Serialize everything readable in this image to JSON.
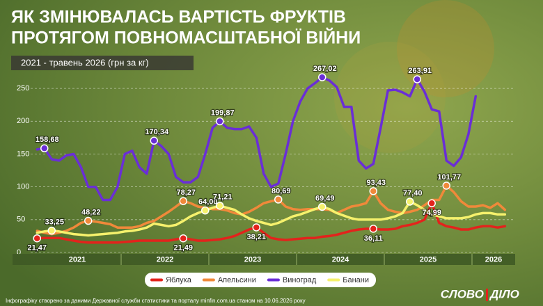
{
  "chart_data": {
    "type": "line",
    "title": [
      "ЯК ЗМІНЮВАЛАСЬ ВАРТІСТЬ ФРУКТІВ",
      "ПРОТЯГОМ ПОВНОМАСШТАБНОЇ ВІЙНИ"
    ],
    "subtitle": "2021 - травень 2026 (грн за кг)",
    "years": [
      "2021",
      "2022",
      "2023",
      "2024",
      "2025",
      "2026"
    ],
    "ylim": [
      0,
      265
    ],
    "yticks": [
      0,
      50,
      100,
      150,
      200,
      250
    ],
    "grid": true,
    "series": [
      {
        "name": "Яблука",
        "color": "#e3231c",
        "values": [
          21.47,
          22,
          22,
          22,
          20,
          18,
          16,
          15,
          15,
          15,
          15,
          15,
          16,
          17,
          18,
          18,
          18,
          18,
          18,
          20,
          21.49,
          20,
          18,
          18,
          19,
          20,
          22,
          25,
          30,
          35,
          38.21,
          30,
          22,
          20,
          19,
          20,
          21,
          22,
          22,
          24,
          25,
          27,
          30,
          33,
          35,
          36,
          36.11,
          35,
          35,
          36,
          40,
          42,
          45,
          50,
          74.99,
          45,
          40,
          38,
          35,
          35,
          38,
          40,
          40,
          38,
          40
        ],
        "value_labels": [
          "21,47",
          null,
          null,
          null,
          null,
          null,
          null,
          null,
          null,
          null,
          null,
          null,
          null,
          null,
          null,
          null,
          null,
          null,
          null,
          null,
          "21,49",
          null,
          null,
          null,
          null,
          null,
          null,
          null,
          null,
          null,
          "38,21",
          null,
          null,
          null,
          null,
          null,
          null,
          null,
          null,
          null,
          null,
          null,
          null,
          null,
          null,
          null,
          "36,11",
          null,
          null,
          null,
          null,
          null,
          null,
          null,
          "74,99",
          null,
          null,
          null,
          null,
          null,
          null,
          null,
          null,
          null,
          null
        ]
      },
      {
        "name": "Апельсини",
        "color": "#f0893a",
        "values": [
          33,
          30,
          28,
          30,
          33,
          38,
          45,
          48.22,
          47,
          45,
          43,
          38,
          38,
          38,
          40,
          45,
          48,
          55,
          62,
          70,
          78.27,
          75,
          70,
          68,
          66,
          66,
          64,
          60,
          58,
          62,
          68,
          75,
          78,
          80.69,
          70,
          66,
          65,
          66,
          66,
          66,
          65,
          60,
          65,
          70,
          72,
          75,
          93.43,
          75,
          65,
          62,
          60,
          62,
          65,
          72,
          80,
          80,
          101.77,
          92,
          78,
          70,
          70,
          72,
          68,
          75,
          65
        ],
        "value_labels": [
          null,
          null,
          null,
          null,
          null,
          null,
          null,
          "48,22",
          null,
          null,
          null,
          null,
          null,
          null,
          null,
          null,
          null,
          null,
          null,
          null,
          "78,27",
          null,
          null,
          null,
          null,
          null,
          null,
          null,
          null,
          null,
          null,
          null,
          null,
          "80,69",
          null,
          null,
          null,
          null,
          null,
          null,
          null,
          null,
          null,
          null,
          null,
          null,
          "93,43",
          null,
          null,
          null,
          null,
          null,
          null,
          null,
          null,
          null,
          "101,77",
          null,
          null,
          null,
          null,
          null,
          null,
          null,
          null
        ]
      },
      {
        "name": "Виноград",
        "color": "#6a2ed6",
        "values": [
          157,
          158.68,
          142,
          140,
          148,
          150,
          130,
          100,
          100,
          80,
          80,
          100,
          150,
          155,
          130,
          120,
          170.34,
          162,
          150,
          115,
          107,
          107,
          115,
          150,
          190,
          199.87,
          190,
          188,
          188,
          192,
          175,
          120,
          100,
          105,
          150,
          200,
          230,
          250,
          258,
          267.02,
          262,
          252,
          222,
          222,
          140,
          128,
          135,
          190,
          247,
          248,
          244,
          238,
          263.91,
          245,
          218,
          215,
          140,
          132,
          145,
          180,
          238,
          null,
          null,
          null,
          null
        ],
        "value_labels": [
          null,
          "158,68",
          null,
          null,
          null,
          null,
          null,
          null,
          null,
          null,
          null,
          null,
          null,
          null,
          null,
          null,
          "170,34",
          null,
          null,
          null,
          null,
          null,
          null,
          null,
          null,
          "199,87",
          null,
          null,
          null,
          null,
          null,
          null,
          null,
          null,
          null,
          null,
          null,
          null,
          null,
          "267,02",
          null,
          null,
          null,
          null,
          null,
          null,
          null,
          null,
          null,
          null,
          null,
          null,
          "263,91",
          null,
          null,
          null,
          null,
          null,
          null,
          null,
          null,
          null,
          null,
          null,
          null
        ]
      },
      {
        "name": "Банани",
        "color": "#f6f16c",
        "values": [
          30,
          32,
          33.25,
          32,
          30,
          28,
          27,
          26,
          27,
          28,
          29,
          30,
          32,
          33,
          35,
          38,
          44,
          42,
          40,
          42,
          48,
          55,
          60,
          64.0,
          68,
          71.21,
          68,
          65,
          58,
          52,
          48,
          45,
          42,
          45,
          50,
          55,
          58,
          62,
          66,
          69.49,
          66,
          60,
          56,
          52,
          50,
          50,
          50,
          50,
          52,
          55,
          60,
          77.4,
          72,
          65,
          58,
          55,
          52,
          52,
          52,
          54,
          58,
          60,
          60,
          58,
          58
        ],
        "value_labels": [
          null,
          null,
          "33,25",
          null,
          null,
          null,
          null,
          null,
          null,
          null,
          null,
          null,
          null,
          null,
          null,
          null,
          null,
          null,
          null,
          null,
          null,
          null,
          null,
          "64,00",
          null,
          "71,21",
          null,
          null,
          null,
          null,
          null,
          null,
          null,
          null,
          null,
          null,
          null,
          null,
          null,
          "69,49",
          null,
          null,
          null,
          null,
          null,
          null,
          null,
          null,
          null,
          null,
          null,
          "77,40",
          null,
          null,
          null,
          null,
          null,
          null,
          null,
          null,
          null,
          null,
          null,
          null,
          null
        ]
      }
    ],
    "footnote": "Інфографіку створено за даними Державної служби статистики та порталу minfin.com.ua станом на 10.06.2026 року",
    "logo": [
      "СЛОВО",
      "ДІЛО"
    ]
  }
}
